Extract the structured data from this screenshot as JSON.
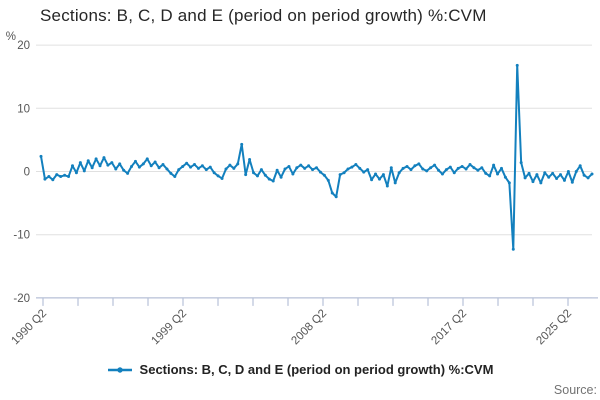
{
  "chart": {
    "title": "Sections: B, C, D and E (period on period growth) %:CVM",
    "y_unit": "%"
  },
  "legend": {
    "label": "Sections: B, C, D and E (period on period growth) %:CVM"
  },
  "footer": {
    "source": "Source:"
  },
  "chart_data": {
    "type": "line",
    "title": "Sections: B, C, D and E (period on period growth) %:CVM",
    "xlabel": "",
    "ylabel": "%",
    "x_start": "1990 Q2",
    "x_end": "2025 Q2",
    "frequency": "quarterly",
    "x_tick_labels": [
      "1990 Q2",
      "1999 Q2",
      "2008 Q2",
      "2017 Q2",
      "2025 Q2"
    ],
    "y_ticks": [
      -20,
      -10,
      0,
      10,
      20
    ],
    "ylim": [
      -20,
      20
    ],
    "grid": true,
    "legend_position": "bottom",
    "line_color": "#1380be",
    "grid_color": "#e0e0e0",
    "axis_color": "#b8c2d8",
    "tick_label_color": "#555555",
    "series": [
      {
        "name": "Sections: B, C, D and E (period on period growth) %:CVM",
        "values": [
          2.4,
          -1.2,
          -0.8,
          -1.3,
          -0.5,
          -0.8,
          -0.6,
          -0.8,
          0.9,
          -0.2,
          1.4,
          0.1,
          1.7,
          0.6,
          2.0,
          0.9,
          2.2,
          1.0,
          1.4,
          0.4,
          1.2,
          0.2,
          -0.3,
          0.8,
          1.6,
          0.7,
          1.2,
          2.0,
          0.9,
          1.5,
          0.6,
          1.1,
          0.4,
          -0.3,
          -0.8,
          0.3,
          0.8,
          1.3,
          0.7,
          1.1,
          0.5,
          0.9,
          0.3,
          0.7,
          -0.2,
          -0.7,
          -1.1,
          0.4,
          1.0,
          0.5,
          1.2,
          4.3,
          -0.5,
          1.9,
          -0.2,
          -0.7,
          0.3,
          -0.6,
          -1.2,
          -1.5,
          0.2,
          -0.9,
          0.4,
          0.8,
          -0.4,
          0.6,
          1.0,
          0.5,
          0.9,
          0.3,
          0.6,
          -0.1,
          -0.6,
          -1.4,
          -3.4,
          -4.0,
          -0.5,
          -0.2,
          0.4,
          0.7,
          1.1,
          0.5,
          -0.1,
          0.3,
          -1.3,
          -0.4,
          -1.2,
          -0.5,
          -2.3,
          0.6,
          -1.8,
          -0.2,
          0.5,
          0.8,
          0.3,
          0.9,
          1.2,
          0.4,
          0.1,
          0.6,
          1.0,
          0.2,
          -0.4,
          0.3,
          0.7,
          -0.2,
          0.5,
          0.8,
          0.4,
          1.1,
          0.6,
          0.2,
          0.6,
          -0.3,
          -0.7,
          1.0,
          -0.4,
          0.5,
          -0.9,
          -1.8,
          -12.3,
          16.8,
          1.4,
          -1.0,
          -0.3,
          -1.6,
          -0.5,
          -1.8,
          -0.2,
          -0.9,
          -0.3,
          -1.1,
          -0.5,
          -1.4,
          0.0,
          -1.7,
          0.0,
          0.9,
          -0.6,
          -1.0,
          -0.4
        ]
      }
    ]
  }
}
